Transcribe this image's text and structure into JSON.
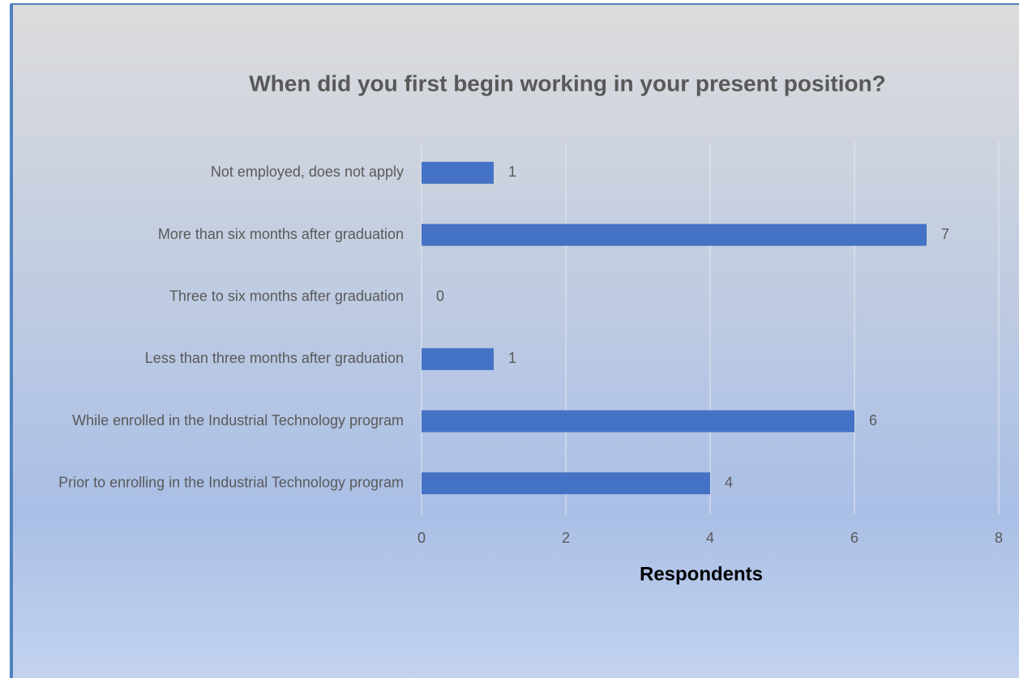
{
  "chart_data": {
    "type": "bar",
    "orientation": "horizontal",
    "title": "When did you first begin working in your present position?",
    "x_label": "Respondents",
    "categories": [
      "Not employed, does not apply",
      "More than six months after graduation",
      "Three to six months after graduation",
      "Less than three months after graduation",
      "While enrolled in the Industrial Technology program",
      "Prior to enrolling in the Industrial Technology program"
    ],
    "values": [
      1,
      7,
      0,
      1,
      6,
      4
    ],
    "color": "#4472c4",
    "xlim": [
      0,
      8
    ],
    "xticks": [
      0,
      2,
      4,
      6,
      8
    ],
    "grid": true
  }
}
